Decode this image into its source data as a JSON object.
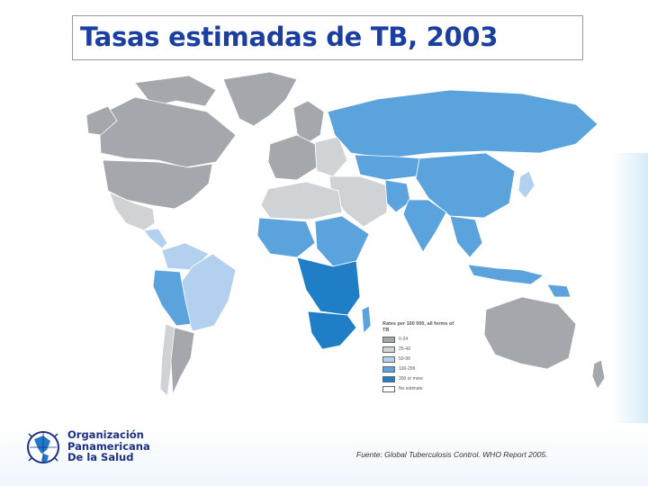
{
  "title": "Tasas estimadas de TB, 2003",
  "legend": {
    "title": "Rates per 100 000, all forms of TB",
    "items": [
      {
        "label": "0-24",
        "color": "#a4a7ab"
      },
      {
        "label": "25-49",
        "color": "#d0d3d6"
      },
      {
        "label": "50-99",
        "color": "#b3d1ee"
      },
      {
        "label": "100-299",
        "color": "#5aa3dc"
      },
      {
        "label": "300 or more",
        "color": "#1f7ec6"
      },
      {
        "label": "No estimate",
        "color": "#ffffff"
      }
    ]
  },
  "org": {
    "line1": "Organización",
    "line2": "Panamericana",
    "line3": "De la Salud"
  },
  "source": "Fuente: Global Tuberculosis Control. WHO Report 2005."
}
